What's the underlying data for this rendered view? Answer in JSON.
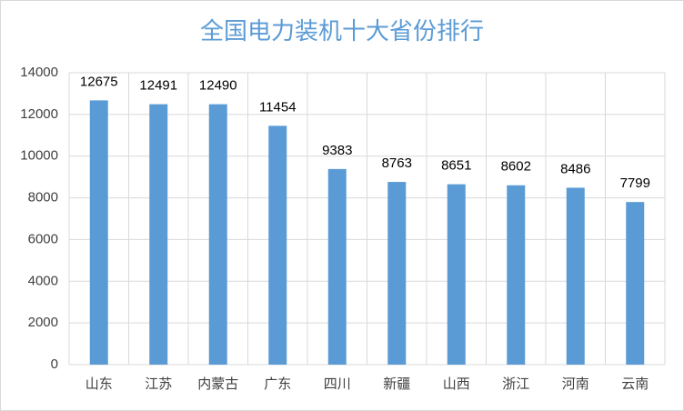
{
  "chart_data": {
    "type": "bar",
    "title": "全国电力装机十大省份排行",
    "categories": [
      "山东",
      "江苏",
      "内蒙古",
      "广东",
      "四川",
      "新疆",
      "山西",
      "浙江",
      "河南",
      "云南"
    ],
    "values": [
      12675,
      12491,
      12490,
      11454,
      9383,
      8763,
      8651,
      8602,
      8486,
      7799
    ],
    "color": "#5b9bd5",
    "ylim": [
      0,
      14000
    ],
    "yticks": [
      0,
      2000,
      4000,
      6000,
      8000,
      10000,
      12000,
      14000
    ],
    "grid": true
  }
}
